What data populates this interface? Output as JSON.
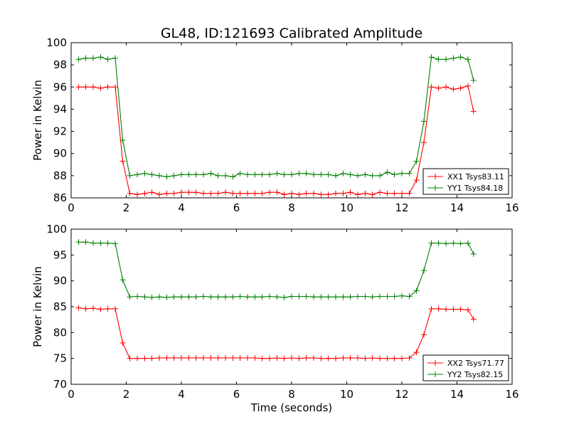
{
  "figure": {
    "title": "GL48, ID:121693 Calibrated Amplitude"
  },
  "chart_data": [
    {
      "type": "line",
      "title": "GL48, ID:121693 Calibrated Amplitude",
      "xlabel": "",
      "ylabel": "Power in Kelvin",
      "xlim": [
        0,
        16
      ],
      "ylim": [
        86,
        100
      ],
      "xticks": [
        0,
        2,
        4,
        6,
        8,
        10,
        12,
        14,
        16
      ],
      "yticks": [
        86,
        88,
        90,
        92,
        94,
        96,
        98,
        100
      ],
      "grid": false,
      "legend_position": "lower-right",
      "x": [
        0.27,
        0.53,
        0.8,
        1.07,
        1.33,
        1.6,
        1.87,
        2.13,
        2.4,
        2.67,
        2.93,
        3.2,
        3.47,
        3.73,
        4.0,
        4.27,
        4.53,
        4.8,
        5.07,
        5.33,
        5.6,
        5.87,
        6.13,
        6.4,
        6.67,
        6.93,
        7.2,
        7.47,
        7.73,
        8.0,
        8.27,
        8.53,
        8.8,
        9.07,
        9.33,
        9.6,
        9.87,
        10.13,
        10.4,
        10.67,
        10.93,
        11.2,
        11.47,
        11.73,
        12.0,
        12.27,
        12.53,
        12.8,
        13.07,
        13.33,
        13.6,
        13.87,
        14.13,
        14.4
      ],
      "series": [
        {
          "name": "XX1 Tsys83.11",
          "color": "#ff0000",
          "values": [
            96.0,
            96.0,
            96.0,
            95.9,
            96.0,
            96.0,
            89.3,
            86.4,
            86.3,
            86.4,
            86.5,
            86.3,
            86.4,
            86.4,
            86.5,
            86.5,
            86.5,
            86.4,
            86.4,
            86.4,
            86.5,
            86.4,
            86.4,
            86.4,
            86.4,
            86.4,
            86.5,
            86.5,
            86.3,
            86.4,
            86.3,
            86.4,
            86.4,
            86.3,
            86.3,
            86.4,
            86.4,
            86.5,
            86.3,
            86.4,
            86.3,
            86.5,
            86.4,
            86.4,
            86.4,
            86.4,
            87.6,
            91.0,
            96.0,
            95.9,
            96.0,
            95.8,
            95.9,
            96.1
          ]
        },
        {
          "name": "YY1 Tsys84.18",
          "color": "#008000",
          "values": [
            98.5,
            98.6,
            98.6,
            98.7,
            98.5,
            98.6,
            91.2,
            88.0,
            88.1,
            88.2,
            88.1,
            88.0,
            87.9,
            88.0,
            88.1,
            88.1,
            88.1,
            88.1,
            88.2,
            88.0,
            88.0,
            87.9,
            88.2,
            88.1,
            88.1,
            88.1,
            88.1,
            88.2,
            88.1,
            88.1,
            88.2,
            88.2,
            88.1,
            88.1,
            88.1,
            88.0,
            88.2,
            88.1,
            88.0,
            88.1,
            88.0,
            88.0,
            88.3,
            88.1,
            88.2,
            88.2,
            89.3,
            92.9,
            98.7,
            98.5,
            98.5,
            98.6,
            98.7,
            98.5
          ]
        }
      ],
      "series_tail": {
        "x": 14.6,
        "values": [
          93.8,
          96.6
        ]
      }
    },
    {
      "type": "line",
      "title": "",
      "xlabel": "Time (seconds)",
      "ylabel": "Power in Kelvin",
      "xlim": [
        0,
        16
      ],
      "ylim": [
        70,
        100
      ],
      "xticks": [
        0,
        2,
        4,
        6,
        8,
        10,
        12,
        14,
        16
      ],
      "yticks": [
        70,
        75,
        80,
        85,
        90,
        95,
        100
      ],
      "grid": false,
      "legend_position": "lower-right",
      "x": [
        0.27,
        0.53,
        0.8,
        1.07,
        1.33,
        1.6,
        1.87,
        2.13,
        2.4,
        2.67,
        2.93,
        3.2,
        3.47,
        3.73,
        4.0,
        4.27,
        4.53,
        4.8,
        5.07,
        5.33,
        5.6,
        5.87,
        6.13,
        6.4,
        6.67,
        6.93,
        7.2,
        7.47,
        7.73,
        8.0,
        8.27,
        8.53,
        8.8,
        9.07,
        9.33,
        9.6,
        9.87,
        10.13,
        10.4,
        10.67,
        10.93,
        11.2,
        11.47,
        11.73,
        12.0,
        12.27,
        12.53,
        12.8,
        13.07,
        13.33,
        13.6,
        13.87,
        14.13,
        14.4
      ],
      "series": [
        {
          "name": "XX2 Tsys71.77",
          "color": "#ff0000",
          "values": [
            84.8,
            84.6,
            84.7,
            84.5,
            84.6,
            84.6,
            78.0,
            75.0,
            75.0,
            75.0,
            75.0,
            75.1,
            75.1,
            75.1,
            75.1,
            75.1,
            75.1,
            75.1,
            75.1,
            75.1,
            75.1,
            75.1,
            75.1,
            75.1,
            75.1,
            75.0,
            75.0,
            75.1,
            75.0,
            75.1,
            75.0,
            75.1,
            75.1,
            75.0,
            75.0,
            75.0,
            75.1,
            75.1,
            75.1,
            75.0,
            75.1,
            75.0,
            75.0,
            75.0,
            75.0,
            75.1,
            76.2,
            79.6,
            84.6,
            84.6,
            84.5,
            84.5,
            84.5,
            84.4
          ]
        },
        {
          "name": "YY2 Tsys82.15",
          "color": "#008000",
          "values": [
            97.5,
            97.5,
            97.3,
            97.3,
            97.3,
            97.2,
            90.2,
            86.9,
            87.0,
            86.9,
            86.8,
            86.9,
            86.8,
            86.9,
            86.9,
            86.9,
            86.9,
            87.0,
            86.9,
            86.9,
            86.9,
            86.9,
            87.0,
            86.9,
            86.9,
            86.9,
            87.0,
            86.9,
            86.8,
            87.0,
            87.0,
            87.0,
            86.9,
            86.9,
            86.9,
            86.9,
            86.9,
            86.9,
            87.0,
            87.0,
            86.9,
            87.0,
            87.0,
            87.0,
            87.1,
            87.0,
            88.1,
            92.0,
            97.3,
            97.3,
            97.2,
            97.3,
            97.2,
            97.3
          ]
        }
      ],
      "series_tail": {
        "x": 14.6,
        "values": [
          82.6,
          95.2
        ]
      }
    }
  ]
}
